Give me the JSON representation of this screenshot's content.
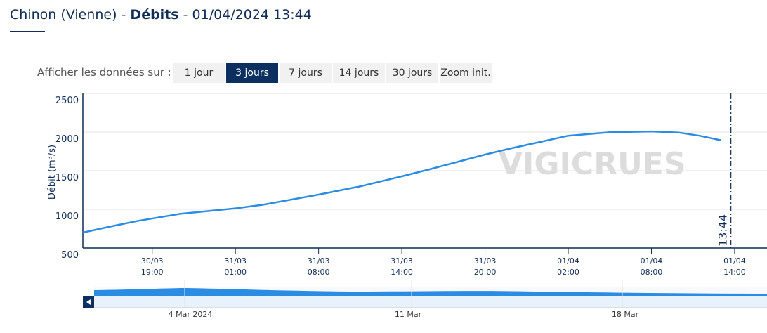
{
  "chart_data": {
    "type": "line",
    "title": [
      "Chinon (Vienne) - ",
      "Débits",
      " - 01/04/2024 13:44"
    ],
    "y_label": "Débit (m³/s)",
    "watermark": "VIGICRUES",
    "x": [
      1711803600000,
      1711810800000,
      1711818000000,
      1711828800000,
      1711843200000,
      1711850400000,
      1711864800000,
      1711875600000,
      1711886400000,
      1711893600000,
      1711908000000,
      1711915200000,
      1711929600000,
      1711940400000,
      1711951200000,
      1711958400000,
      1711963800000,
      1711969200000
    ],
    "series": [
      {
        "name": "Débit",
        "color": "#2b8ce3",
        "values": [
          700,
          778,
          852,
          942,
          1013,
          1060,
          1191,
          1297,
          1427,
          1518,
          1709,
          1795,
          1953,
          1998,
          2008,
          1993,
          1952,
          1895
        ]
      }
    ],
    "xlim": [
      1711803600000,
      1711981200000
    ],
    "xticks": [
      {
        "value": 1711821600000,
        "label": [
          "30/03",
          "19:00"
        ]
      },
      {
        "value": 1711843200000,
        "label": [
          "31/03",
          "01:00"
        ]
      },
      {
        "value": 1711864800000,
        "label": [
          "31/03",
          "08:00"
        ]
      },
      {
        "value": 1711886400000,
        "label": [
          "31/03",
          "14:00"
        ]
      },
      {
        "value": 1711908000000,
        "label": [
          "31/03",
          "20:00"
        ]
      },
      {
        "value": 1711929600000,
        "label": [
          "01/04",
          "02:00"
        ]
      },
      {
        "value": 1711951200000,
        "label": [
          "01/04",
          "08:00"
        ]
      },
      {
        "value": 1711972800000,
        "label": [
          "01/04",
          "14:00"
        ]
      }
    ],
    "ylim": [
      500,
      2500
    ],
    "yticks": [
      500,
      1000,
      1500,
      2000,
      2500
    ],
    "grid": true,
    "plot_line": {
      "x": 1711971840000,
      "label": "13:44"
    }
  },
  "range_selector": {
    "label": "Afficher les données sur :",
    "buttons": [
      "1 jour",
      "3 jours",
      "7 jours",
      "14 jours",
      "30 jours",
      "Zoom init."
    ],
    "selected": 1
  },
  "navigator": {
    "labels": [
      "4 Mar 2024",
      "11 Mar",
      "18 Mar"
    ]
  }
}
